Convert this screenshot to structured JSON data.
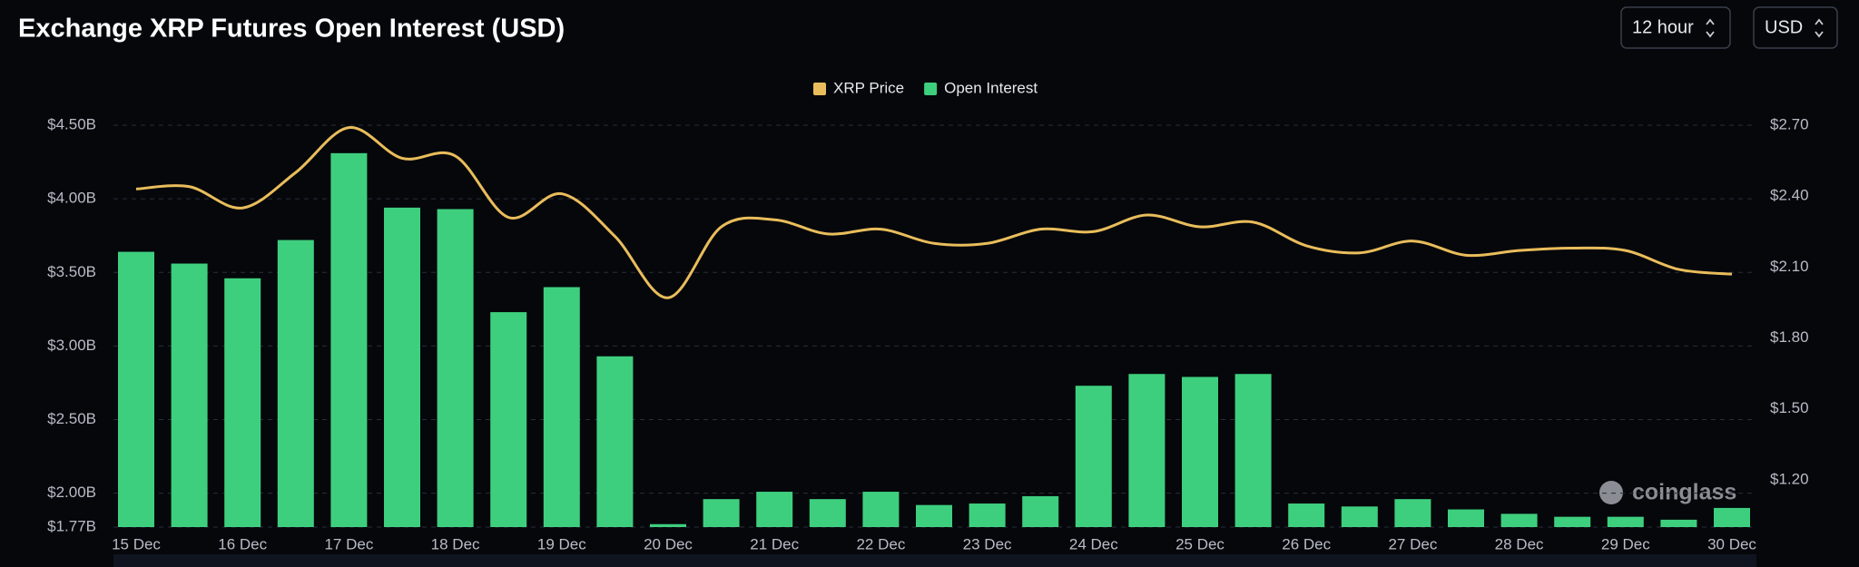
{
  "title": "Exchange XRP Futures Open Interest (USD)",
  "controls": [
    "12 hour",
    "USD"
  ],
  "watermark": "coinglass",
  "chart_data": {
    "type": "bar",
    "categories": [
      "15 Dec",
      null,
      "16 Dec",
      null,
      "17 Dec",
      null,
      "18 Dec",
      null,
      "19 Dec",
      null,
      "20 Dec",
      null,
      "21 Dec",
      null,
      "22 Dec",
      null,
      "23 Dec",
      null,
      "24 Dec",
      null,
      "25 Dec",
      null,
      "26 Dec",
      null,
      "27 Dec",
      null,
      "28 Dec",
      null,
      "29 Dec",
      null,
      "30 Dec"
    ],
    "series": [
      {
        "name": "XRP Price",
        "type": "line",
        "axis": "y2",
        "color": "#e9bd5b",
        "values": [
          2.43,
          2.44,
          2.35,
          2.5,
          2.69,
          2.56,
          2.57,
          2.31,
          2.41,
          2.23,
          1.97,
          2.27,
          2.3,
          2.24,
          2.26,
          2.2,
          2.2,
          2.26,
          2.25,
          2.32,
          2.27,
          2.29,
          2.19,
          2.16,
          2.21,
          2.15,
          2.17,
          2.18,
          2.17,
          2.09,
          2.07
        ]
      },
      {
        "name": "Open Interest",
        "type": "bar",
        "color": "#3ecf7e",
        "values": [
          3.64,
          3.56,
          3.46,
          3.72,
          4.31,
          3.94,
          3.93,
          3.23,
          3.4,
          2.93,
          1.79,
          1.96,
          2.01,
          1.96,
          2.01,
          1.92,
          1.93,
          1.98,
          2.73,
          2.81,
          2.79,
          2.81,
          1.93,
          1.91,
          1.96,
          1.89,
          1.86,
          1.84,
          1.84,
          1.82,
          1.9
        ]
      }
    ],
    "ylim": [
      1.77,
      4.5
    ],
    "yticks": [
      {
        "value": 1.77,
        "label": "$1.77B"
      },
      {
        "value": 2.0,
        "label": "$2.00B"
      },
      {
        "value": 2.5,
        "label": "$2.50B"
      },
      {
        "value": 3.0,
        "label": "$3.00B"
      },
      {
        "value": 3.5,
        "label": "$3.50B"
      },
      {
        "value": 4.0,
        "label": "$4.00B"
      },
      {
        "value": 4.5,
        "label": "$4.50B"
      }
    ],
    "y2lim": [
      1.0,
      2.7
    ],
    "y2ticks": [
      {
        "value": 1.2,
        "label": "$1.20"
      },
      {
        "value": 1.5,
        "label": "$1.50"
      },
      {
        "value": 1.8,
        "label": "$1.80"
      },
      {
        "value": 2.1,
        "label": "$2.10"
      },
      {
        "value": 2.4,
        "label": "$2.40"
      },
      {
        "value": 2.7,
        "label": "$2.70"
      }
    ],
    "grid": true,
    "legend": "top"
  }
}
